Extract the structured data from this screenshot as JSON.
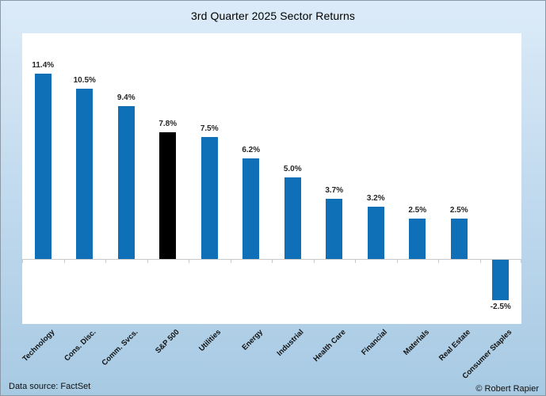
{
  "chart_data": {
    "type": "bar",
    "title": "3rd Quarter 2025 Sector Returns",
    "categories": [
      "Technology",
      "Cons. Disc.",
      "Comm. Svcs.",
      "S&P 500",
      "Utilities",
      "Energy",
      "Industrial",
      "Health Care",
      "Financial",
      "Materials",
      "Real Estate",
      "Consumer Staples"
    ],
    "values": [
      11.4,
      10.5,
      9.4,
      7.8,
      7.5,
      6.2,
      5.0,
      3.7,
      3.2,
      2.5,
      2.5,
      -2.5
    ],
    "data_labels": [
      "11.4%",
      "10.5%",
      "9.4%",
      "7.8%",
      "7.5%",
      "6.2%",
      "5.0%",
      "3.7%",
      "3.2%",
      "2.5%",
      "2.5%",
      "-2.5%"
    ],
    "xlabel": "",
    "ylabel": "",
    "ylim": [
      -4,
      13.9
    ],
    "grid": false,
    "legend": false,
    "colors": {
      "bar_default": "#0f70b8",
      "bar_highlight": "#000000",
      "highlight_category": "S&P 500",
      "background_top": "#dcebf8",
      "background_bottom": "#a7cae3",
      "plot_background": "#ffffff",
      "axis_line": "#c9c9c9"
    }
  },
  "footer": {
    "source": "Data source: FactSet",
    "credit": "© Robert Rapier"
  }
}
